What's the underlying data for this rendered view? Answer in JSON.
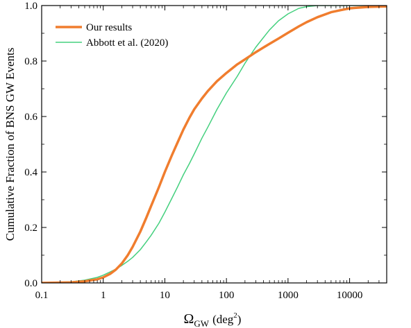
{
  "chart_data": {
    "type": "line",
    "xscale": "log",
    "xlim": [
      0.1,
      40000
    ],
    "ylim": [
      0.0,
      1.0
    ],
    "xlabel_main": "Ω",
    "xlabel_sub": "GW",
    "xlabel_unit": "(deg",
    "xlabel_sup": "2",
    "xlabel_close": ")",
    "ylabel": "Cumulative Fraction of BNS GW Events",
    "xticks": [
      {
        "value": 0.1,
        "label": "0.1"
      },
      {
        "value": 1,
        "label": "1"
      },
      {
        "value": 10,
        "label": "10"
      },
      {
        "value": 100,
        "label": "100"
      },
      {
        "value": 1000,
        "label": "1000"
      },
      {
        "value": 10000,
        "label": "10000"
      }
    ],
    "yticks": [
      {
        "value": 0.0,
        "label": "0.0"
      },
      {
        "value": 0.2,
        "label": "0.2"
      },
      {
        "value": 0.4,
        "label": "0.4"
      },
      {
        "value": 0.6,
        "label": "0.6"
      },
      {
        "value": 0.8,
        "label": "0.8"
      },
      {
        "value": 1.0,
        "label": "1.0"
      }
    ],
    "legend_position": "top-left",
    "grid": false,
    "series": [
      {
        "name": "Our results",
        "color": "#f07d2e",
        "points": [
          [
            0.1,
            0.0
          ],
          [
            0.3,
            0.002
          ],
          [
            0.5,
            0.006
          ],
          [
            0.8,
            0.013
          ],
          [
            1.0,
            0.02
          ],
          [
            1.3,
            0.033
          ],
          [
            1.6,
            0.048
          ],
          [
            2.0,
            0.07
          ],
          [
            2.5,
            0.1
          ],
          [
            3.0,
            0.13
          ],
          [
            4.0,
            0.185
          ],
          [
            5.0,
            0.235
          ],
          [
            6.0,
            0.278
          ],
          [
            8.0,
            0.345
          ],
          [
            10.0,
            0.4
          ],
          [
            13.0,
            0.46
          ],
          [
            16.0,
            0.505
          ],
          [
            20.0,
            0.553
          ],
          [
            25.0,
            0.595
          ],
          [
            30.0,
            0.626
          ],
          [
            40.0,
            0.665
          ],
          [
            50.0,
            0.692
          ],
          [
            70.0,
            0.727
          ],
          [
            100.0,
            0.757
          ],
          [
            150.0,
            0.788
          ],
          [
            200.0,
            0.806
          ],
          [
            300.0,
            0.832
          ],
          [
            500.0,
            0.862
          ],
          [
            700.0,
            0.881
          ],
          [
            1000.0,
            0.902
          ],
          [
            1500.0,
            0.925
          ],
          [
            2000.0,
            0.94
          ],
          [
            3000.0,
            0.958
          ],
          [
            5000.0,
            0.976
          ],
          [
            7000.0,
            0.983
          ],
          [
            10000.0,
            0.99
          ],
          [
            20000.0,
            0.995
          ],
          [
            40000.0,
            0.997
          ]
        ]
      },
      {
        "name": "Abbott et al. (2020)",
        "color": "#44d07e",
        "points": [
          [
            0.1,
            0.001
          ],
          [
            0.3,
            0.004
          ],
          [
            0.5,
            0.01
          ],
          [
            0.8,
            0.02
          ],
          [
            1.0,
            0.028
          ],
          [
            1.3,
            0.04
          ],
          [
            1.6,
            0.05
          ],
          [
            2.0,
            0.063
          ],
          [
            2.5,
            0.078
          ],
          [
            3.0,
            0.092
          ],
          [
            4.0,
            0.12
          ],
          [
            5.0,
            0.148
          ],
          [
            6.0,
            0.172
          ],
          [
            8.0,
            0.215
          ],
          [
            10.0,
            0.255
          ],
          [
            13.0,
            0.305
          ],
          [
            16.0,
            0.345
          ],
          [
            20.0,
            0.39
          ],
          [
            25.0,
            0.43
          ],
          [
            30.0,
            0.465
          ],
          [
            40.0,
            0.522
          ],
          [
            50.0,
            0.562
          ],
          [
            70.0,
            0.625
          ],
          [
            100.0,
            0.685
          ],
          [
            150.0,
            0.745
          ],
          [
            200.0,
            0.792
          ],
          [
            300.0,
            0.85
          ],
          [
            400.0,
            0.885
          ],
          [
            500.0,
            0.912
          ],
          [
            700.0,
            0.945
          ],
          [
            1000.0,
            0.97
          ],
          [
            1500.0,
            0.99
          ],
          [
            2000.0,
            0.996
          ],
          [
            3000.0,
            1.0
          ],
          [
            40000.0,
            1.0
          ]
        ]
      }
    ]
  }
}
